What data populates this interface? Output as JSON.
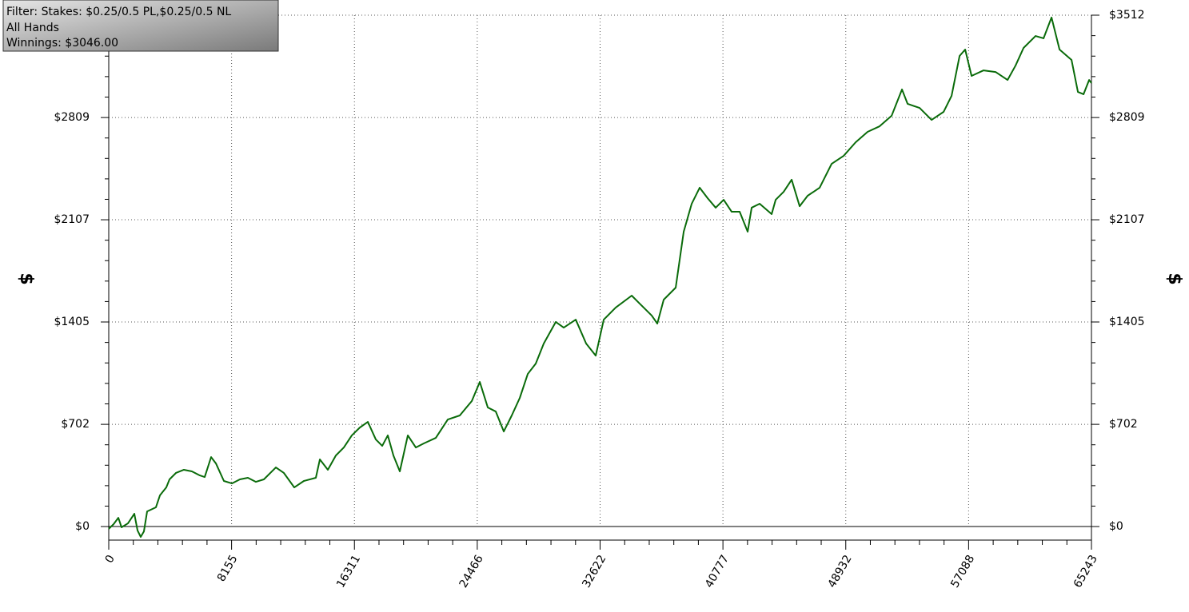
{
  "info": {
    "filter": "Filter: Stakes: $0.25/0.5 PL,$0.25/0.5 NL",
    "hands": "All Hands",
    "winnings": "Winnings: $3046.00"
  },
  "chart_data": {
    "type": "line",
    "ylabel": "$",
    "y2label": "$",
    "xlim": [
      0,
      65243
    ],
    "ylim": [
      -93,
      3512
    ],
    "xticks": [
      0,
      8155,
      16311,
      24466,
      32622,
      40777,
      48932,
      57088,
      65243
    ],
    "yticks": [
      {
        "value": 0,
        "label": "$0"
      },
      {
        "value": 702,
        "label": "$702"
      },
      {
        "value": 1405,
        "label": "$1405"
      },
      {
        "value": 2107,
        "label": "$2107"
      },
      {
        "value": 2809,
        "label": "$2809"
      },
      {
        "value": 3512,
        "label": "$3512"
      }
    ],
    "grid": true,
    "series": [
      {
        "color": "#0a6b0a",
        "x": [
          0,
          319,
          637,
          849,
          1274,
          1699,
          1911,
          2124,
          2336,
          2548,
          3132,
          3398,
          3822,
          4035,
          4460,
          4990,
          5521,
          6052,
          6371,
          6796,
          7114,
          7645,
          8176,
          8707,
          9238,
          9769,
          10299,
          11096,
          11627,
          12317,
          12954,
          13750,
          14016,
          14547,
          15078,
          15608,
          16139,
          16670,
          17201,
          17732,
          18157,
          18528,
          18900,
          19325,
          19856,
          20387,
          20917,
          21714,
          22510,
          23307,
          24103,
          24634,
          25165,
          25696,
          26226,
          26757,
          27288,
          27819,
          28350,
          28881,
          29677,
          30208,
          31005,
          31695,
          32332,
          32863,
          33659,
          34721,
          35252,
          36048,
          36420,
          36844,
          37641,
          38172,
          38703,
          39234,
          39764,
          40295,
          40826,
          41357,
          41888,
          42419,
          42684,
          43215,
          44012,
          44277,
          44808,
          45339,
          45870,
          46401,
          47197,
          47993,
          48790,
          49586,
          50382,
          51179,
          51975,
          52665,
          53037,
          53833,
          54630,
          55426,
          55957,
          56488,
          56859,
          57284,
          58080,
          58877,
          59673,
          60204,
          60735,
          61531,
          62062,
          62593,
          63124,
          63920,
          64345,
          64717,
          65088,
          65243
        ],
        "values": [
          -16,
          16,
          60,
          -5,
          22,
          88,
          -27,
          -71,
          -33,
          104,
          132,
          214,
          269,
          324,
          368,
          390,
          379,
          351,
          340,
          477,
          434,
          313,
          296,
          324,
          335,
          307,
          324,
          406,
          368,
          269,
          313,
          335,
          461,
          390,
          488,
          543,
          626,
          680,
          719,
          598,
          554,
          626,
          488,
          379,
          626,
          543,
          571,
          609,
          735,
          763,
          862,
          993,
          818,
          790,
          653,
          763,
          883,
          1048,
          1119,
          1257,
          1405,
          1366,
          1421,
          1257,
          1174,
          1421,
          1504,
          1586,
          1531,
          1449,
          1394,
          1558,
          1641,
          2025,
          2217,
          2327,
          2255,
          2190,
          2244,
          2162,
          2162,
          2025,
          2190,
          2217,
          2146,
          2244,
          2299,
          2382,
          2200,
          2272,
          2327,
          2491,
          2546,
          2639,
          2711,
          2749,
          2821,
          3002,
          2903,
          2875,
          2793,
          2848,
          2958,
          3232,
          3276,
          3095,
          3133,
          3122,
          3067,
          3166,
          3287,
          3369,
          3353,
          3496,
          3276,
          3205,
          2985,
          2969,
          3067,
          3046
        ]
      }
    ]
  }
}
